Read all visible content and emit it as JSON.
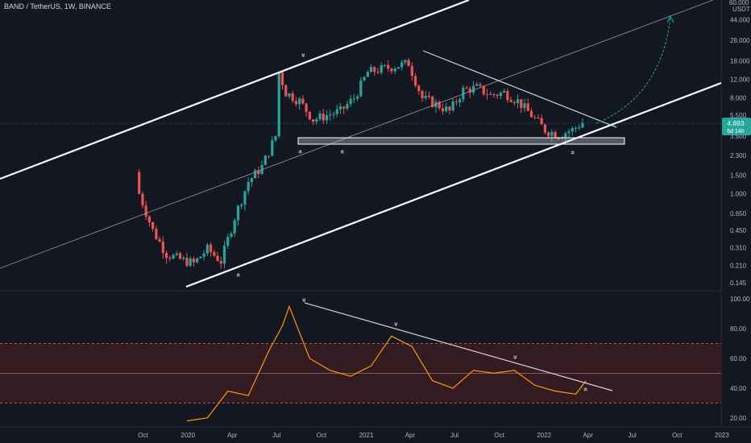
{
  "header": {
    "pair": "BAND / TetherUS",
    "interval": "1W",
    "exchange": "BINANCE"
  },
  "price_axis": {
    "top_label": "60.000",
    "unit": "USDT",
    "ticks": [
      "44.000",
      "28.000",
      "18.000",
      "12.000",
      "8.000",
      "5.500",
      "3.500",
      "2.300",
      "1.500",
      "1.000",
      "0.650",
      "0.450",
      "0.310",
      "0.210",
      "0.145"
    ]
  },
  "price_badge": {
    "price": "4.693",
    "countdown": "6d 14h",
    "color": "#26a69a"
  },
  "rsi_axis": {
    "ticks": [
      "100.00",
      "80.00",
      "60.00",
      "40.00",
      "20.00"
    ]
  },
  "time_axis": {
    "ticks": [
      "Oct",
      "2020",
      "Apr",
      "Jul",
      "Oct",
      "2021",
      "Apr",
      "Jul",
      "Oct",
      "2022",
      "Apr",
      "Jul",
      "Oct",
      "2023"
    ]
  },
  "colors": {
    "background": "#131722",
    "up": "#26a69a",
    "down": "#ef5350",
    "rsi_line": "#ff9800",
    "rsi_band": "#3a1c22",
    "trendline": "#ffffff",
    "projection_arrow": "#26a69a"
  },
  "annotations": {
    "up_marker": "»",
    "down_marker": "»"
  },
  "chart_data": [
    {
      "type": "candlestick",
      "title": "BAND / TetherUS, 1W, BINANCE",
      "scale": "log",
      "ylim": [
        0.13,
        65
      ],
      "x_range": [
        "2019-09-02",
        "2023-01-16"
      ],
      "x": [
        "2019-09-23",
        "2019-10-21",
        "2019-11-18",
        "2019-12-16",
        "2020-01-13",
        "2020-02-10",
        "2020-03-09",
        "2020-04-06",
        "2020-05-04",
        "2020-06-01",
        "2020-06-29",
        "2020-07-06",
        "2020-07-20",
        "2020-08-17",
        "2020-09-14",
        "2020-10-12",
        "2020-11-09",
        "2020-12-07",
        "2021-01-04",
        "2021-02-01",
        "2021-03-01",
        "2021-03-29",
        "2021-04-26",
        "2021-05-24",
        "2021-06-21",
        "2021-07-19",
        "2021-08-16",
        "2021-09-13",
        "2021-10-11",
        "2021-11-08",
        "2021-12-06",
        "2022-01-03",
        "2022-01-31",
        "2022-02-28",
        "2022-03-21"
      ],
      "close": [
        1.0,
        0.45,
        0.27,
        0.24,
        0.22,
        0.3,
        0.23,
        0.6,
        1.3,
        1.8,
        3.5,
        14.0,
        9.0,
        7.5,
        5.0,
        5.5,
        6.0,
        8.0,
        14.0,
        15.0,
        16.0,
        17.0,
        8.0,
        7.0,
        6.0,
        9.5,
        10.0,
        8.5,
        9.0,
        7.5,
        5.5,
        4.0,
        3.6,
        4.0,
        4.693
      ],
      "series_name": "BAND / TetherUS",
      "markers": {
        "support_zone": [
          3.1,
          3.5
        ],
        "last_price": 4.693
      }
    },
    {
      "type": "line",
      "series_name": "",
      "ylim": [
        15,
        105
      ],
      "y_ticks": [
        100,
        80,
        60,
        40,
        20
      ],
      "levels": [
        70,
        50,
        30
      ],
      "x": [
        "2019-12-30",
        "2020-02-10",
        "2020-03-23",
        "2020-05-04",
        "2020-06-15",
        "2020-07-13",
        "2020-07-27",
        "2020-09-07",
        "2020-10-19",
        "2020-11-30",
        "2021-01-11",
        "2021-02-22",
        "2021-04-05",
        "2021-05-17",
        "2021-06-28",
        "2021-08-09",
        "2021-09-20",
        "2021-11-01",
        "2021-12-13",
        "2022-01-24",
        "2022-03-07",
        "2022-03-28"
      ],
      "values": [
        18,
        20,
        38,
        35,
        65,
        82,
        95,
        60,
        52,
        48,
        55,
        75,
        68,
        45,
        40,
        52,
        50,
        52,
        42,
        38,
        36,
        45
      ]
    }
  ]
}
